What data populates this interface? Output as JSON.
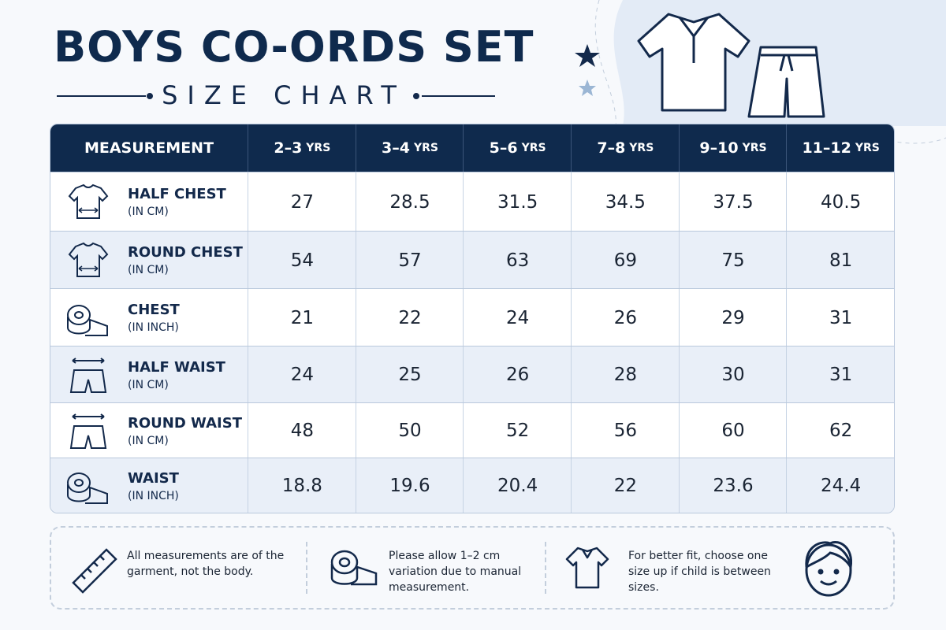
{
  "header": {
    "title": "BOYS CO-ORDS SET",
    "subtitle": "SIZE CHART"
  },
  "table": {
    "first_header": "MEASUREMENT",
    "columns": [
      {
        "range": "2–3",
        "unit": "YRS"
      },
      {
        "range": "3–4",
        "unit": "YRS"
      },
      {
        "range": "5–6",
        "unit": "YRS"
      },
      {
        "range": "7–8",
        "unit": "YRS"
      },
      {
        "range": "9–10",
        "unit": "YRS"
      },
      {
        "range": "11–12",
        "unit": "YRS"
      }
    ],
    "rows": [
      {
        "label": "HALF CHEST",
        "unit": "(IN CM)",
        "values": [
          27,
          28.5,
          31.5,
          34.5,
          37.5,
          40.5
        ]
      },
      {
        "label": "ROUND CHEST",
        "unit": "(IN CM)",
        "values": [
          54,
          57,
          63,
          69,
          75,
          81
        ]
      },
      {
        "label": "CHEST",
        "unit": "(IN INCH)",
        "values": [
          21,
          22,
          24,
          26,
          29,
          31
        ]
      },
      {
        "label": "HALF WAIST",
        "unit": "(IN CM)",
        "values": [
          24,
          25,
          26,
          28,
          30,
          31
        ]
      },
      {
        "label": "ROUND WAIST",
        "unit": "(IN CM)",
        "values": [
          48,
          50,
          52,
          56,
          60,
          62
        ]
      },
      {
        "label": "WAIST",
        "unit": "(IN INCH)",
        "values": [
          18.8,
          19.6,
          20.4,
          22,
          23.6,
          24.4
        ]
      }
    ]
  },
  "notes": [
    "All measurements are of the garment, not the body.",
    "Please allow 1–2 cm variation due to manual measurement.",
    "For better fit, choose one size up if child is between sizes."
  ]
}
